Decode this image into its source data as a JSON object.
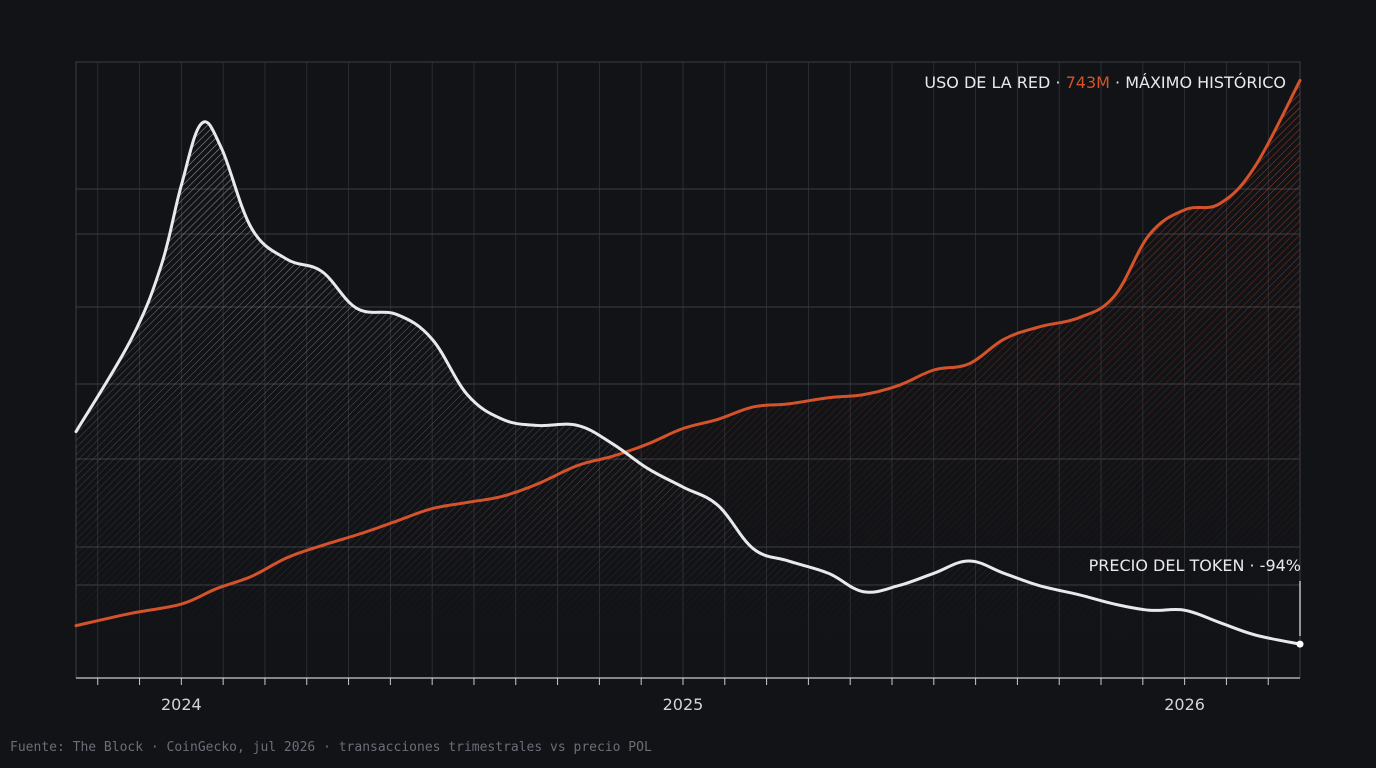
{
  "colors": {
    "background": "#111317",
    "grid": "#3a3d44",
    "grid_minor": "#2a2d33",
    "network_series": "#d4532b",
    "price_series": "#e8e9ec",
    "label_text": "#e8e9ec",
    "source_text": "#6a6e76"
  },
  "annotations": {
    "network_prefix": "USO DE LA RED · ",
    "network_value": "743M",
    "network_suffix": " · MÁXIMO HISTÓRICO",
    "price_label": "PRECIO DEL TOKEN · -94%"
  },
  "source": "Fuente: The Block · CoinGecko, jul 2026 · transacciones trimestrales vs precio POL",
  "chart_data": {
    "type": "line",
    "title": "",
    "xlabel": "",
    "ylabel": "",
    "x_tick_labels": [
      "2024",
      "2025",
      "2026"
    ],
    "x_tick_positions": [
      2024.0,
      2025.0,
      2026.0
    ],
    "xlim": [
      2023.79,
      2026.23
    ],
    "ylim": [
      0,
      100
    ],
    "y_axis_labels_shown": false,
    "grid": true,
    "series": [
      {
        "name": "USO DE LA RED",
        "color": "#d4532b",
        "x": [
          2023.79,
          2023.9,
          2024.0,
          2024.07,
          2024.14,
          2024.21,
          2024.28,
          2024.36,
          2024.43,
          2024.5,
          2024.57,
          2024.64,
          2024.71,
          2024.79,
          2024.86,
          2024.93,
          2025.0,
          2025.07,
          2025.14,
          2025.21,
          2025.29,
          2025.36,
          2025.43,
          2025.5,
          2025.57,
          2025.64,
          2025.71,
          2025.79,
          2025.86,
          2025.93,
          2026.0,
          2026.07,
          2026.14,
          2026.23
        ],
        "values": [
          8.5,
          10.5,
          12,
          14.5,
          16.5,
          19.5,
          21.5,
          23.5,
          25.5,
          27.5,
          28.5,
          29.5,
          31.5,
          34.5,
          36,
          38,
          40.5,
          42,
          44,
          44.5,
          45.5,
          46,
          47.5,
          50,
          51,
          55,
          57,
          58.5,
          62,
          72,
          76,
          77,
          83,
          97
        ]
      },
      {
        "name": "PRECIO DEL TOKEN",
        "color": "#e8e9ec",
        "x": [
          2023.79,
          2023.9,
          2023.96,
          2024.0,
          2024.04,
          2024.08,
          2024.14,
          2024.21,
          2024.28,
          2024.35,
          2024.43,
          2024.5,
          2024.57,
          2024.64,
          2024.71,
          2024.79,
          2024.86,
          2024.93,
          2025.0,
          2025.07,
          2025.14,
          2025.21,
          2025.29,
          2025.36,
          2025.43,
          2025.5,
          2025.57,
          2025.64,
          2025.71,
          2025.79,
          2025.86,
          2025.93,
          2026.0,
          2026.07,
          2026.14,
          2026.23
        ],
        "values": [
          40,
          55,
          67,
          80,
          90,
          86,
          73,
          68,
          66,
          60,
          59,
          55,
          46,
          42,
          41,
          41,
          38,
          34,
          31,
          28,
          21,
          19,
          17,
          14,
          15,
          17,
          19,
          17,
          15,
          13.5,
          12,
          11,
          11,
          9,
          7,
          5.5
        ]
      }
    ]
  }
}
